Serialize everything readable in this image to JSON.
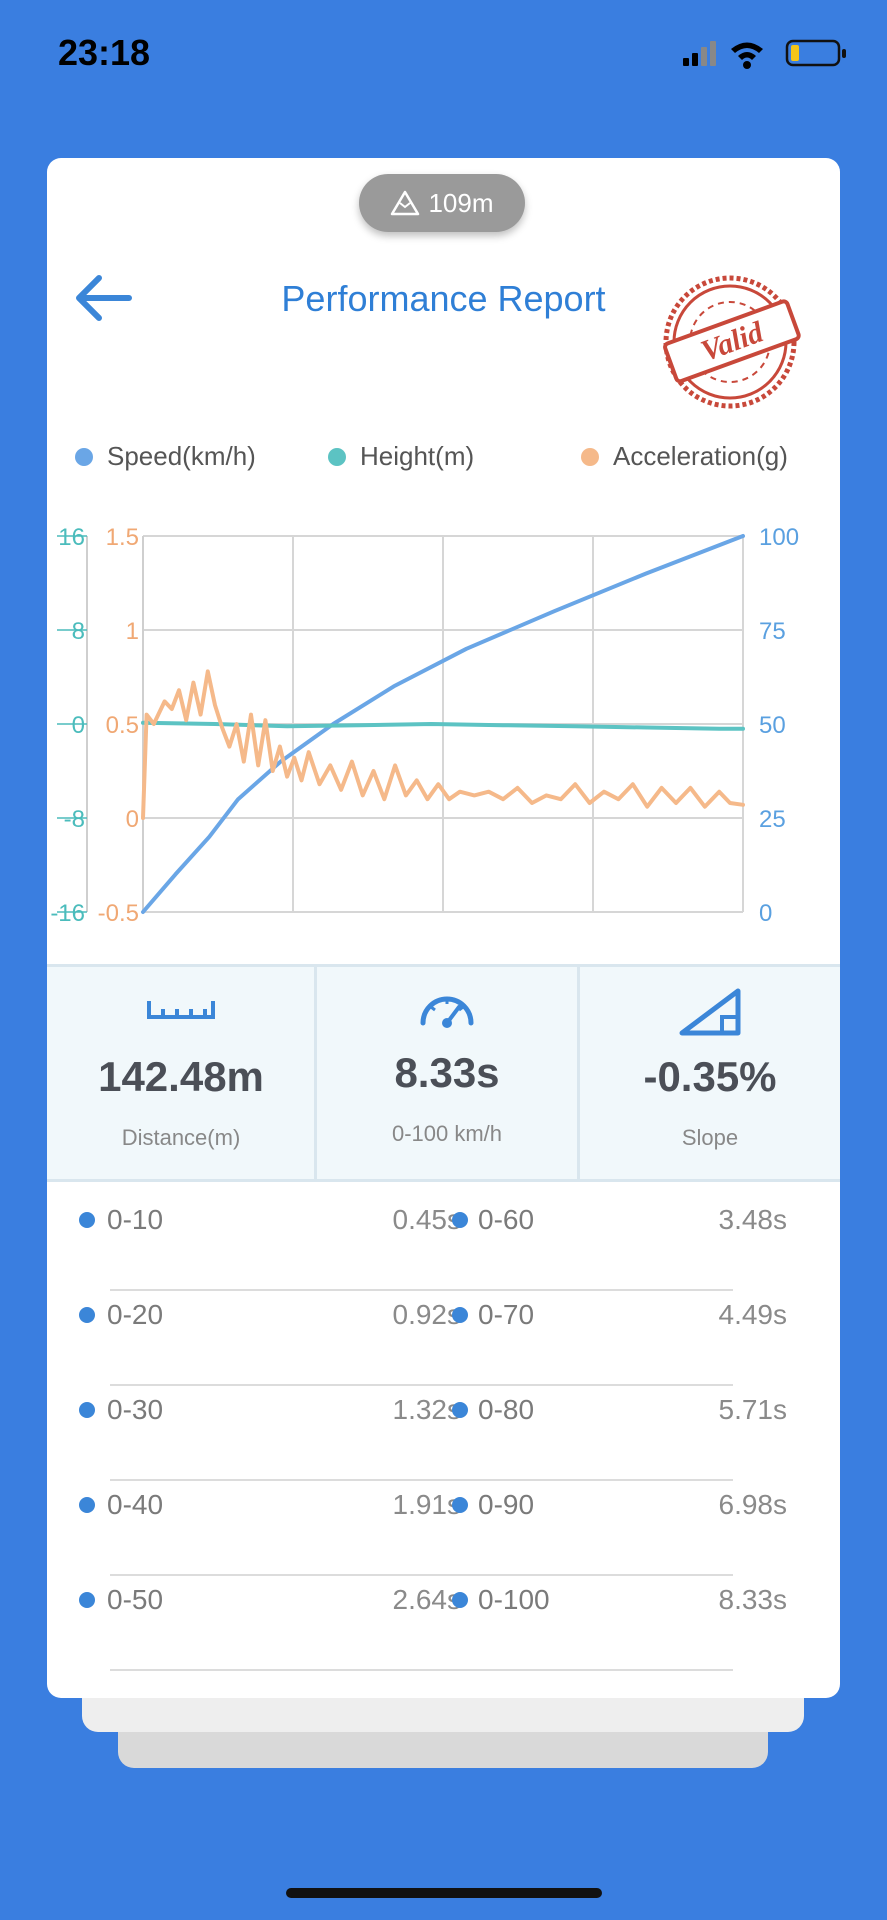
{
  "status_bar": {
    "time": "23:18"
  },
  "header": {
    "altitude": "109m",
    "title": "Performance Report",
    "stamp_text": "Valid"
  },
  "legend": [
    {
      "label": "Speed(km/h)",
      "color": "#6aa6e6"
    },
    {
      "label": "Height(m)",
      "color": "#5cc3c3"
    },
    {
      "label": "Acceleration(g)",
      "color": "#f5b98a"
    }
  ],
  "chart_data": {
    "type": "line",
    "axes": {
      "height": {
        "ticks": [
          "16",
          "8",
          "0",
          "-8",
          "-16"
        ],
        "ylim": [
          -16,
          16
        ],
        "color": "#4bbcbc"
      },
      "acceleration": {
        "ticks": [
          "1.5",
          "1",
          "0.5",
          "0",
          "-0.5"
        ],
        "ylim": [
          -0.5,
          1.5
        ],
        "color": "#f0a874"
      },
      "speed": {
        "ticks": [
          "100",
          "75",
          "50",
          "25",
          "0"
        ],
        "ylim": [
          0,
          100
        ],
        "color": "#5aa0e0"
      }
    },
    "xlim": [
      0,
      8.33
    ],
    "grid": true,
    "legend_position": "top",
    "series": [
      {
        "name": "Speed(km/h)",
        "axis": "speed",
        "color": "#6aa6e6",
        "x": [
          0,
          0.45,
          0.92,
          1.32,
          1.91,
          2.64,
          3.48,
          4.49,
          5.71,
          6.98,
          8.33
        ],
        "y": [
          0,
          10,
          20,
          30,
          40,
          50,
          60,
          70,
          80,
          90,
          100
        ]
      },
      {
        "name": "Height(m)",
        "axis": "height",
        "color": "#5cc3c3",
        "x": [
          0,
          1,
          2,
          3,
          4,
          5,
          6,
          7,
          8,
          8.33
        ],
        "y": [
          0.1,
          0.0,
          -0.2,
          -0.1,
          0.0,
          -0.1,
          -0.2,
          -0.3,
          -0.4,
          -0.4
        ]
      },
      {
        "name": "Acceleration(g)",
        "axis": "acceleration",
        "color": "#f5b98a",
        "x": [
          0,
          0.05,
          0.15,
          0.3,
          0.4,
          0.5,
          0.6,
          0.7,
          0.8,
          0.9,
          1.0,
          1.1,
          1.2,
          1.3,
          1.4,
          1.5,
          1.6,
          1.7,
          1.8,
          1.9,
          2.0,
          2.1,
          2.2,
          2.3,
          2.45,
          2.6,
          2.75,
          2.9,
          3.05,
          3.2,
          3.35,
          3.5,
          3.65,
          3.8,
          3.95,
          4.1,
          4.25,
          4.4,
          4.6,
          4.8,
          5.0,
          5.2,
          5.4,
          5.6,
          5.8,
          6.0,
          6.2,
          6.4,
          6.6,
          6.8,
          7.0,
          7.2,
          7.4,
          7.6,
          7.8,
          8.0,
          8.15,
          8.33
        ],
        "y": [
          0,
          0.55,
          0.5,
          0.62,
          0.58,
          0.68,
          0.52,
          0.72,
          0.55,
          0.78,
          0.6,
          0.48,
          0.38,
          0.5,
          0.3,
          0.55,
          0.28,
          0.52,
          0.25,
          0.38,
          0.22,
          0.32,
          0.2,
          0.35,
          0.18,
          0.28,
          0.15,
          0.3,
          0.12,
          0.25,
          0.1,
          0.28,
          0.12,
          0.2,
          0.1,
          0.18,
          0.1,
          0.14,
          0.12,
          0.14,
          0.1,
          0.16,
          0.08,
          0.12,
          0.1,
          0.18,
          0.08,
          0.14,
          0.1,
          0.18,
          0.06,
          0.16,
          0.08,
          0.16,
          0.06,
          0.14,
          0.08,
          0.07
        ]
      }
    ]
  },
  "stats": {
    "distance": {
      "value": "142.48m",
      "label": "Distance(m)"
    },
    "time": {
      "value": "8.33s",
      "label": "0-100 km/h"
    },
    "slope": {
      "value": "-0.35%",
      "label": "Slope"
    }
  },
  "splits_left": [
    {
      "label": "0-10",
      "time": "0.45s"
    },
    {
      "label": "0-20",
      "time": "0.92s"
    },
    {
      "label": "0-30",
      "time": "1.32s"
    },
    {
      "label": "0-40",
      "time": "1.91s"
    },
    {
      "label": "0-50",
      "time": "2.64s"
    }
  ],
  "splits_right": [
    {
      "label": "0-60",
      "time": "3.48s"
    },
    {
      "label": "0-70",
      "time": "4.49s"
    },
    {
      "label": "0-80",
      "time": "5.71s"
    },
    {
      "label": "0-90",
      "time": "6.98s"
    },
    {
      "label": "0-100",
      "time": "8.33s"
    }
  ]
}
